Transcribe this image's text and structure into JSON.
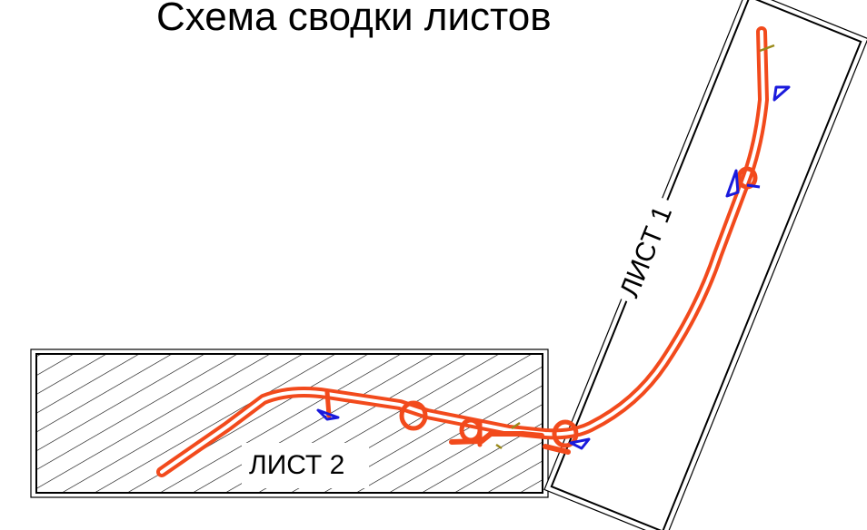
{
  "title": "Схема сводки листов",
  "sheets": [
    {
      "id": "sheet-1",
      "label": "ЛИСТ 1"
    },
    {
      "id": "sheet-2",
      "label": "ЛИСТ 2"
    }
  ],
  "colors": {
    "road": "#f24a1c",
    "sign": "#1a1adc",
    "marker": "#9a8a1a",
    "frame": "#000000"
  }
}
